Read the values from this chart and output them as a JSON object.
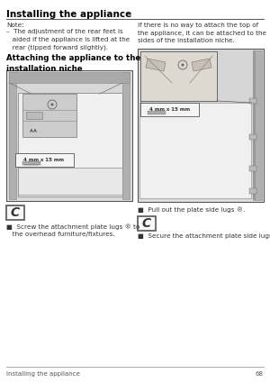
{
  "title": "Installing the appliance",
  "bg_color": "#ffffff",
  "note_text": "Note:",
  "note_bullet": "–  The adjustment of the rear feet is\n   aided if the appliance is lifted at the\n   rear (tipped forward slightly).",
  "subheading": "Attaching the appliance to the\ninstallation niche",
  "right_para": "If there is no way to attach the top of\nthe appliance, it can be attached to the\nsides of the installation niche.",
  "bullet1": "■  Screw the attachment plate lugs ® to\n   the overhead furniture/fixtures.",
  "bullet2": "■  Pull out the plate side lugs ®.",
  "bullet3": "■  Secure the attachment plate side lugs.",
  "screw_label": "4 mm x 15 mm",
  "page_number": "68",
  "page_label": "Installing the appliance",
  "title_fs": 7.5,
  "body_fs": 5.2,
  "sub_fs": 6.2,
  "page_fs": 5.0
}
